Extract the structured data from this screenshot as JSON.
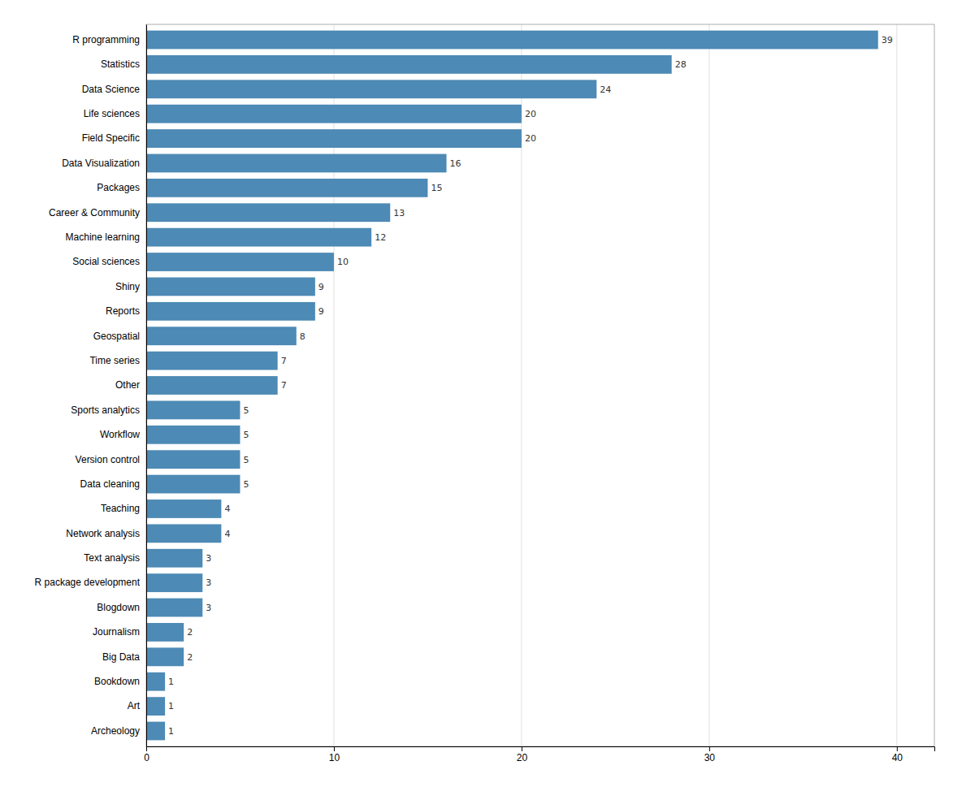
{
  "chart_data": {
    "type": "bar",
    "orientation": "horizontal",
    "categories": [
      "R programming",
      "Statistics",
      "Data Science",
      "Life sciences",
      "Field Specific",
      "Data Visualization",
      "Packages",
      "Career & Community",
      "Machine learning",
      "Social sciences",
      "Shiny",
      "Reports",
      "Geospatial",
      "Time series",
      "Other",
      "Sports analytics",
      "Workflow",
      "Version control",
      "Data cleaning",
      "Teaching",
      "Network analysis",
      "Text analysis",
      "R package development",
      "Blogdown",
      "Journalism",
      "Big Data",
      "Bookdown",
      "Art",
      "Archeology"
    ],
    "values": [
      39,
      28,
      24,
      20,
      20,
      16,
      15,
      13,
      12,
      10,
      9,
      9,
      8,
      7,
      7,
      5,
      5,
      5,
      5,
      4,
      4,
      3,
      3,
      3,
      2,
      2,
      1,
      1,
      1
    ],
    "color": "#4d8ab5",
    "xlim": [
      0,
      42
    ],
    "xticks": [
      0,
      10,
      20,
      30,
      40
    ],
    "grid": true,
    "data_labels": true
  }
}
